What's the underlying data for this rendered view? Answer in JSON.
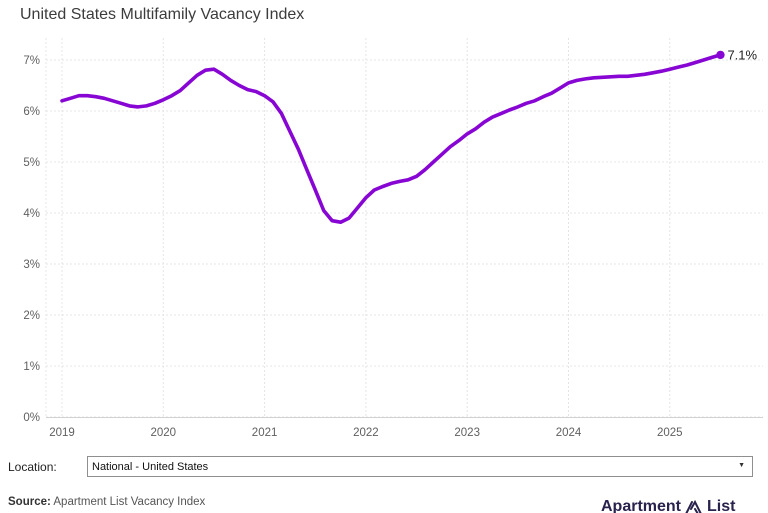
{
  "page": {
    "title": "United States Multifamily Vacancy Index"
  },
  "chart_data": {
    "type": "line",
    "title": "United States Multifamily Vacancy Index",
    "series_name": "US multifamily vacancy index",
    "x_unit": "month",
    "x_start": "2019-01",
    "x_end": "2025-07",
    "values": [
      6.2,
      6.25,
      6.3,
      6.3,
      6.28,
      6.25,
      6.2,
      6.15,
      6.1,
      6.08,
      6.1,
      6.15,
      6.22,
      6.3,
      6.4,
      6.55,
      6.7,
      6.8,
      6.82,
      6.72,
      6.6,
      6.5,
      6.42,
      6.38,
      6.3,
      6.18,
      5.95,
      5.6,
      5.25,
      4.85,
      4.45,
      4.05,
      3.85,
      3.82,
      3.9,
      4.1,
      4.3,
      4.45,
      4.52,
      4.58,
      4.62,
      4.65,
      4.72,
      4.85,
      5.0,
      5.15,
      5.3,
      5.42,
      5.55,
      5.65,
      5.78,
      5.88,
      5.95,
      6.02,
      6.08,
      6.15,
      6.2,
      6.28,
      6.35,
      6.45,
      6.55,
      6.6,
      6.63,
      6.65,
      6.66,
      6.67,
      6.68,
      6.68,
      6.7,
      6.72,
      6.75,
      6.78,
      6.82,
      6.86,
      6.9,
      6.95,
      7.0,
      7.05,
      7.1
    ],
    "x_ticks": [
      "2019",
      "2020",
      "2021",
      "2022",
      "2023",
      "2024",
      "2025"
    ],
    "y_ticks": [
      "0%",
      "1%",
      "2%",
      "3%",
      "4%",
      "5%",
      "6%",
      "7%"
    ],
    "ylim": [
      0,
      7.4
    ],
    "end_label": "7.1%",
    "grid": true,
    "legend": false,
    "colors": {
      "line": "#8806D3",
      "grid": "#e4e4e4",
      "axis_line": "#d2d2d2",
      "axis_text": "#606060",
      "end_label": "#222222"
    }
  },
  "controls": {
    "location_label": "Location:",
    "location_selected": "National - United States"
  },
  "footer": {
    "source_label": "Source:",
    "source_text": "Apartment List Vacancy Index",
    "logo_word_1": "Apartment",
    "logo_word_2": "List"
  }
}
